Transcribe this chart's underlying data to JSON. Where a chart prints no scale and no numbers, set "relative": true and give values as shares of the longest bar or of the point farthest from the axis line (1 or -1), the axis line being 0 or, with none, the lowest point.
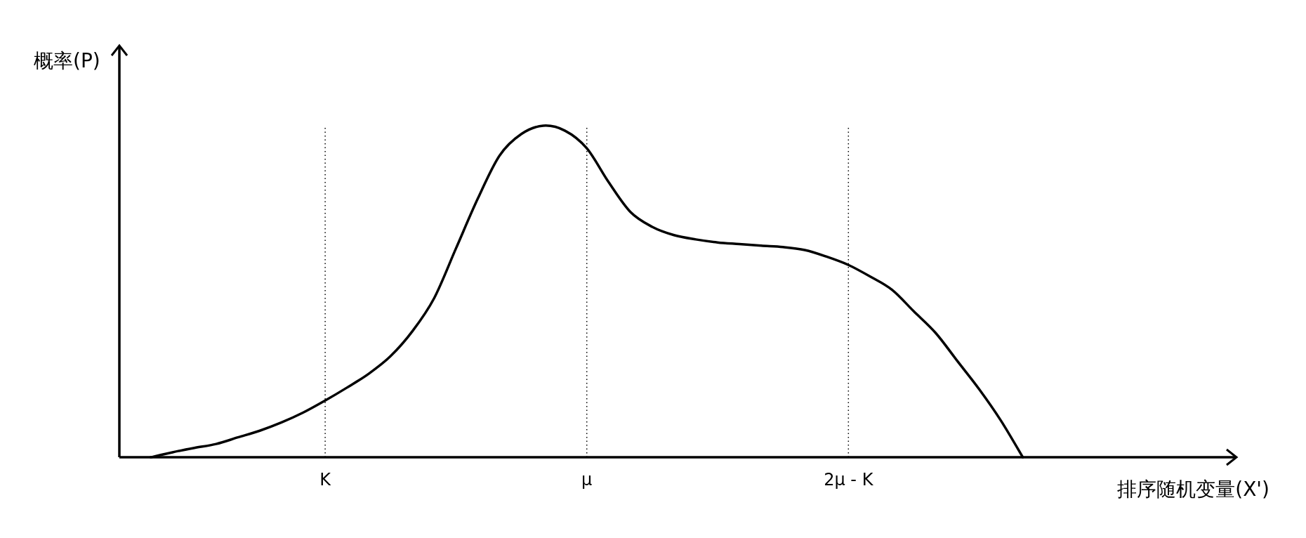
{
  "chart_data": {
    "type": "line",
    "relative": true,
    "xlabel": "排序随机变量(X')",
    "ylabel": "概率(P)",
    "categories": [
      null,
      null,
      null,
      null,
      null,
      null,
      null,
      null,
      "K",
      null,
      null,
      null,
      null,
      null,
      null,
      null,
      null,
      null,
      null,
      null,
      "μ",
      null,
      null,
      null,
      null,
      null,
      null,
      null,
      null,
      null,
      null,
      null,
      "2μ - K",
      null,
      null,
      null,
      null,
      null,
      null,
      null,
      null
    ],
    "tick_labels": "x",
    "line_style": "solid",
    "ref_lines": [
      {
        "axis": "x",
        "value": "K",
        "line_style": "dotted",
        "color": "#000000"
      },
      {
        "axis": "x",
        "value": "μ",
        "line_style": "dotted",
        "color": "#000000"
      },
      {
        "axis": "x",
        "value": "2μ - K",
        "line_style": "dotted",
        "color": "#000000"
      }
    ],
    "series": [
      {
        "color": "#000000",
        "values": [
          0,
          0.015,
          0.028,
          0.04,
          0.06,
          0.08,
          0.105,
          0.135,
          0.171,
          0.21,
          0.252,
          0.305,
          0.38,
          0.48,
          0.63,
          0.78,
          0.91,
          0.975,
          1.0,
          0.985,
          0.932,
          0.83,
          0.74,
          0.695,
          0.67,
          0.657,
          0.648,
          0.643,
          0.638,
          0.634,
          0.625,
          0.605,
          0.58,
          0.545,
          0.505,
          0.44,
          0.375,
          0.29,
          0.205,
          0.11,
          0
        ]
      }
    ]
  }
}
